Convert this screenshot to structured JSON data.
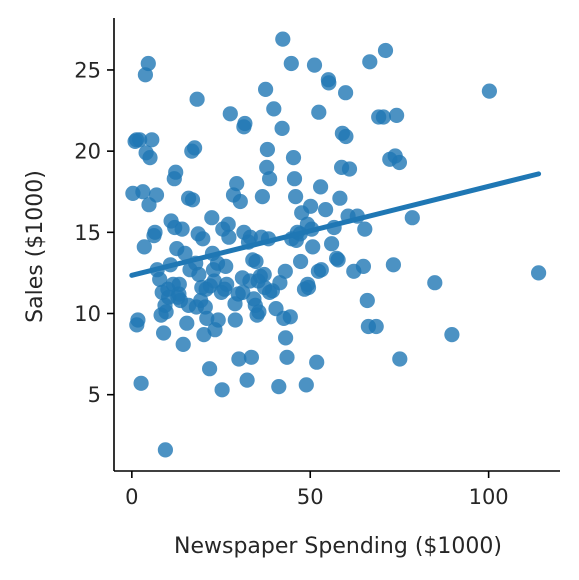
{
  "chart_data": {
    "type": "scatter",
    "title": "",
    "xlabel": "Newspaper Spending ($1000)",
    "ylabel": "Sales ($1000)",
    "xlim": [
      -5,
      120
    ],
    "ylim": [
      0.3,
      28.2
    ],
    "xticks": [
      0,
      50,
      100
    ],
    "yticks": [
      5,
      10,
      15,
      20,
      25
    ],
    "grid": false,
    "legend": "none",
    "colors": {
      "points": "#1f77b4",
      "line": "#1f77b4",
      "axis": "#000000",
      "text": "#262626"
    },
    "regression": {
      "x": [
        0,
        114
      ],
      "y": [
        12.35,
        18.6
      ]
    },
    "x": [
      0.3,
      1.3,
      1.4,
      3.8,
      4.6,
      6.2,
      9.3,
      9.4,
      10.1,
      11.6,
      12.6,
      12.9,
      13.6,
      15.9,
      17.6,
      18.6,
      19.3,
      20.6,
      22.0,
      23.3,
      25.5,
      27.2,
      29.4,
      30.4,
      31.1,
      31.4,
      31.7,
      33.2,
      34.8,
      35.6,
      36.6,
      37.5,
      37.8,
      38.6,
      40.4,
      42.3,
      43.0,
      44.7,
      45.3,
      46.4,
      47.2,
      49.5,
      50.4,
      51.2,
      52.4,
      52.9,
      55.2,
      57.8,
      58.8,
      59.0,
      60.6,
      63.2,
      65.3,
      66.0,
      66.7,
      69.2,
      71.1,
      73.3,
      73.8,
      75.0,
      84.9,
      89.7,
      100.2,
      114.0,
      0.9,
      2.6,
      3.1,
      4.8,
      5.6,
      7.1,
      8.2,
      8.9,
      10.3,
      11.0,
      12.3,
      13.2,
      14.1,
      15.4,
      16.3,
      17.0,
      18.1,
      19.6,
      20.2,
      21.0,
      22.4,
      23.1,
      24.2,
      25.1,
      26.3,
      27.0,
      28.5,
      29.8,
      31.4,
      32.7,
      33.1,
      34.2,
      35.1,
      36.0,
      37.2,
      38.3,
      39.4,
      41.2,
      42.6,
      43.5,
      44.8,
      45.6,
      47.3,
      48.4,
      49.2,
      50.1,
      52.3,
      55.1,
      57.4,
      59.9,
      62.2,
      66.3,
      68.5,
      70.5,
      72.3,
      75.1,
      78.6,
      1.7,
      3.5,
      5.1,
      6.5,
      7.8,
      9.6,
      10.8,
      11.9,
      13.3,
      14.4,
      15.9,
      16.8,
      17.9,
      18.8,
      19.9,
      20.8,
      21.8,
      22.9,
      24.0,
      25.3,
      26.6,
      27.6,
      28.9,
      30.0,
      31.0,
      32.3,
      33.5,
      34.6,
      35.4,
      36.3,
      37.1,
      38.6,
      39.8,
      41.5,
      43.1,
      44.4,
      46.1,
      47.6,
      49.3,
      50.7,
      53.1,
      54.3,
      56.7,
      58.3,
      60.0,
      2.2,
      4.0,
      6.9,
      8.5,
      12.0,
      14.9,
      18.3,
      22.6,
      26.0,
      29.0,
      33.9,
      38.0,
      42.1,
      45.9,
      48.9,
      51.8,
      56.0,
      61.0,
      64.9,
      74.2
    ],
    "y": [
      17.4,
      20.7,
      9.3,
      24.7,
      25.4,
      14.8,
      10.5,
      1.6,
      11.5,
      11.8,
      14.0,
      11.0,
      10.8,
      17.1,
      20.2,
      14.9,
      10.8,
      10.4,
      11.7,
      9.0,
      15.2,
      14.7,
      18.0,
      16.9,
      11.3,
      21.5,
      21.7,
      14.7,
      13.2,
      10.1,
      17.2,
      23.8,
      19.0,
      18.3,
      10.3,
      26.9,
      12.6,
      25.4,
      19.6,
      15.0,
      14.9,
      11.6,
      15.2,
      25.3,
      22.4,
      17.8,
      24.2,
      13.3,
      19.0,
      21.1,
      16.0,
      16.0,
      15.2,
      10.8,
      25.5,
      22.1,
      26.2,
      13.0,
      19.7,
      19.3,
      11.9,
      8.7,
      23.7,
      12.5,
      20.6,
      5.7,
      17.5,
      16.7,
      20.7,
      12.7,
      9.9,
      8.8,
      11.0,
      15.7,
      18.7,
      11.2,
      15.2,
      9.4,
      12.7,
      17.0,
      10.4,
      11.6,
      8.7,
      9.7,
      15.9,
      12.0,
      9.6,
      11.3,
      12.9,
      15.5,
      17.3,
      11.2,
      15.0,
      14.4,
      12.0,
      10.9,
      9.9,
      12.3,
      11.6,
      14.6,
      11.4,
      5.5,
      9.7,
      7.3,
      14.6,
      18.3,
      13.2,
      11.5,
      15.5,
      16.6,
      12.6,
      24.4,
      13.4,
      23.6,
      12.6,
      9.2,
      9.2,
      22.1,
      19.5,
      7.2,
      15.9,
      9.6,
      14.1,
      19.6,
      15.0,
      12.1,
      10.1,
      13.0,
      18.3,
      11.8,
      8.1,
      10.5,
      20.0,
      13.1,
      12.4,
      14.6,
      11.5,
      6.6,
      12.7,
      13.1,
      5.3,
      11.8,
      22.3,
      10.6,
      7.2,
      12.2,
      5.9,
      7.3,
      10.5,
      12.0,
      14.7,
      12.4,
      11.3,
      22.6,
      11.9,
      8.5,
      9.8,
      14.5,
      16.2,
      11.8,
      14.1,
      12.7,
      16.4,
      15.3,
      17.1,
      20.9,
      20.7,
      19.9,
      17.3,
      11.3,
      15.3,
      13.7,
      23.2,
      13.7,
      11.5,
      9.6,
      13.3,
      20.1,
      21.4,
      17.2,
      5.6,
      7.0,
      14.3,
      18.9,
      12.9,
      22.2
    ]
  }
}
